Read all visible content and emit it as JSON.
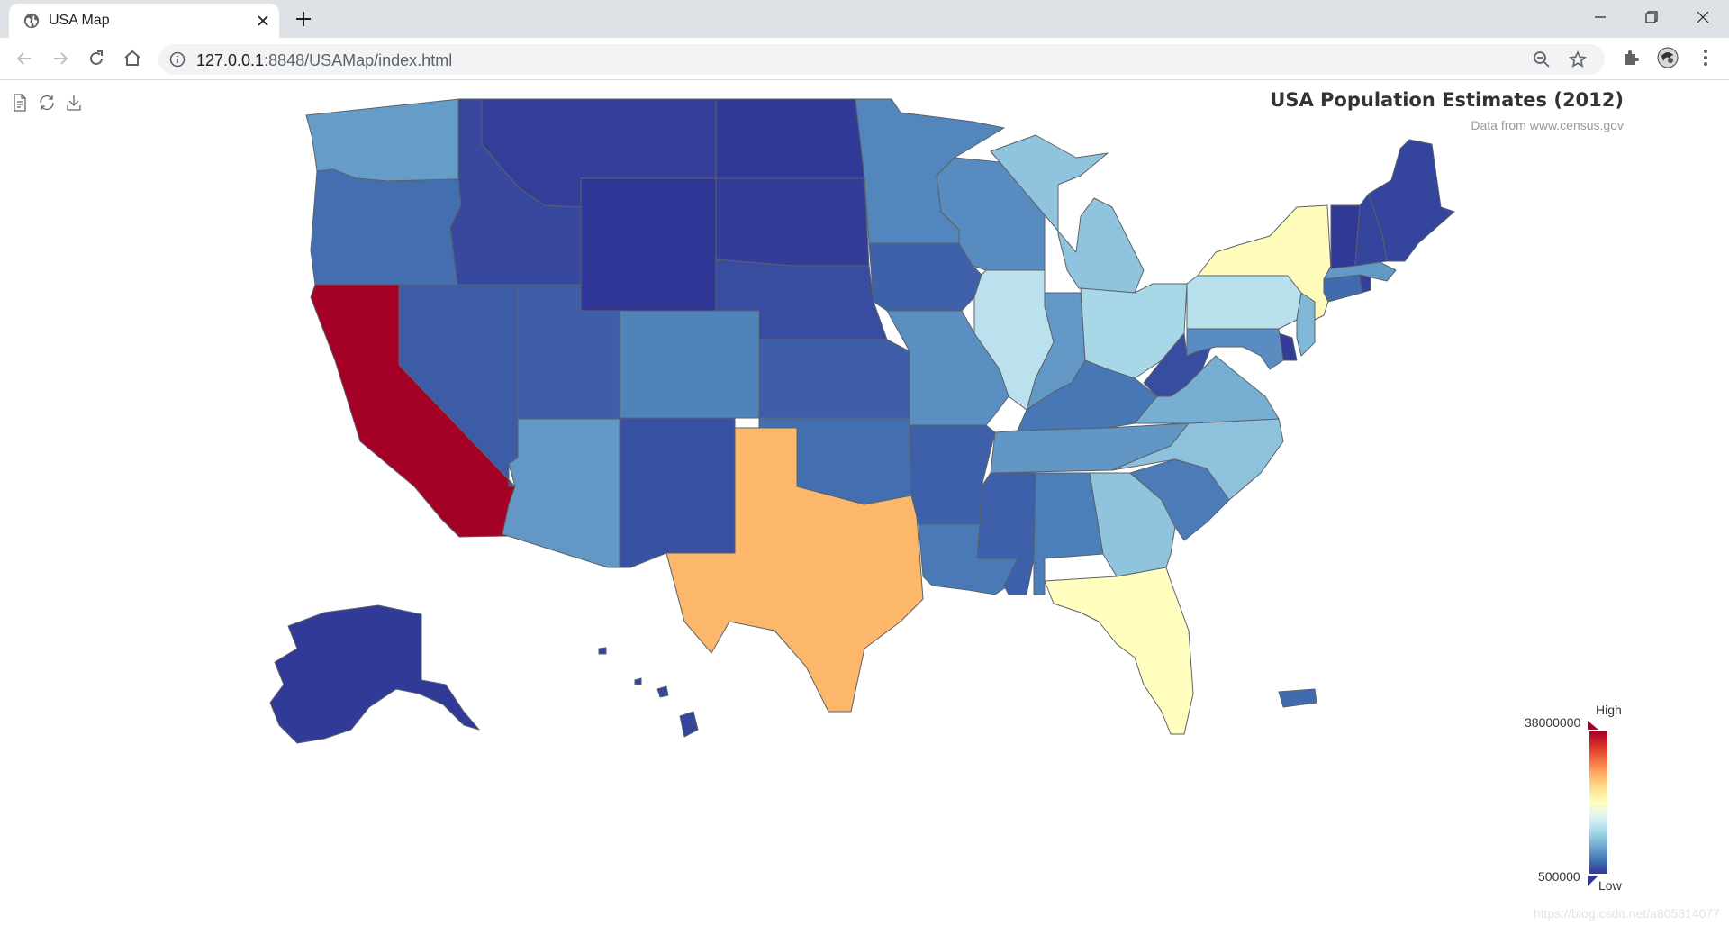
{
  "browser": {
    "tab_title": "USA Map",
    "url_host": "127.0.0.1",
    "url_rest": ":8848/USAMap/index.html"
  },
  "map": {
    "title": "USA Population Estimates (2012)",
    "subtitle": "Data from www.census.gov",
    "toolbox": [
      "data-view-icon",
      "restore-icon",
      "save-image-icon"
    ],
    "visual_map": {
      "min": 500000,
      "max": 38000000,
      "min_label": "500000",
      "max_label": "38000000",
      "text_high": "High",
      "text_low": "Low",
      "colors": [
        "#313695",
        "#4575b4",
        "#74add1",
        "#abd9e9",
        "#e0f3f8",
        "#ffffbf",
        "#fee090",
        "#fdae61",
        "#f46d43",
        "#d73027",
        "#a50026"
      ]
    },
    "state_values": {
      "Washington": 6897012,
      "Oregon": 3899353,
      "California": 38041430,
      "Nevada": 2758931,
      "Idaho": 1595728,
      "Montana": 1005141,
      "Wyoming": 576412,
      "Utah": 2855287,
      "Arizona": 6553255,
      "Colorado": 5187582,
      "New Mexico": 2085538,
      "North Dakota": 699628,
      "South Dakota": 833354,
      "Nebraska": 1855525,
      "Kansas": 2885905,
      "Oklahoma": 3814820,
      "Texas": 26059203,
      "Minnesota": 5379139,
      "Iowa": 3074186,
      "Missouri": 6021988,
      "Arkansas": 2949131,
      "Louisiana": 4601893,
      "Wisconsin": 5726398,
      "Illinois": 12875255,
      "Michigan": 9883360,
      "Indiana": 6537334,
      "Ohio": 11544225,
      "Kentucky": 4380415,
      "Tennessee": 6456243,
      "Mississippi": 2984926,
      "Alabama": 4822023,
      "Georgia": 9919945,
      "Florida": 19317568,
      "South Carolina": 4723723,
      "North Carolina": 9752073,
      "Virginia": 8185867,
      "West Virginia": 1855413,
      "Pennsylvania": 12763536,
      "New York": 19570261,
      "New Jersey": 8864590,
      "Delaware": 917092,
      "Maryland": 5884563,
      "Connecticut": 3590347,
      "Rhode Island": 1050292,
      "Massachusetts": 6646144,
      "Vermont": 626011,
      "New Hampshire": 1320718,
      "Maine": 1329192,
      "Alaska": 731449,
      "Hawaii": 1392313,
      "Puerto Rico": 3667084
    }
  },
  "watermark": "https://blog.csdn.net/a805814077"
}
